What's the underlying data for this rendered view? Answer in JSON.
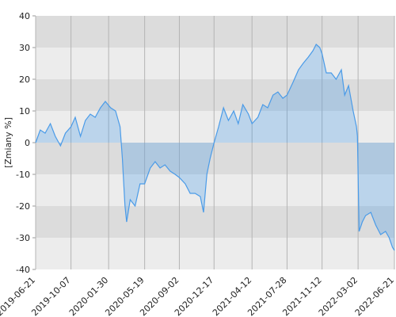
{
  "chart_data": {
    "type": "area",
    "y_label": "[Zmiany %]",
    "xlim": [
      "2019-06-21",
      "2022-06-21"
    ],
    "xticks": [
      "2019-06-21",
      "2019-10-07",
      "2020-01-30",
      "2020-05-19",
      "2020-09-02",
      "2020-12-17",
      "2021-04-12",
      "2021-07-28",
      "2021-11-12",
      "2022-03-02",
      "2022-06-21"
    ],
    "ylim": [
      -40,
      40
    ],
    "yticks": [
      -40,
      -30,
      -20,
      -10,
      0,
      10,
      20,
      30,
      40
    ],
    "grid": true,
    "series": [
      {
        "color": "#4a9be8",
        "x": [
          "2019-06-21",
          "2019-07-05",
          "2019-07-20",
          "2019-08-05",
          "2019-08-20",
          "2019-09-05",
          "2019-09-20",
          "2019-10-07",
          "2019-10-20",
          "2019-11-05",
          "2019-11-20",
          "2019-12-05",
          "2019-12-20",
          "2020-01-05",
          "2020-01-20",
          "2020-02-05",
          "2020-02-20",
          "2020-03-05",
          "2020-03-12",
          "2020-03-20",
          "2020-03-25",
          "2020-04-05",
          "2020-04-20",
          "2020-05-05",
          "2020-05-19",
          "2020-06-05",
          "2020-06-20",
          "2020-07-05",
          "2020-07-20",
          "2020-08-05",
          "2020-08-20",
          "2020-09-02",
          "2020-09-20",
          "2020-10-05",
          "2020-10-20",
          "2020-11-05",
          "2020-11-15",
          "2020-11-25",
          "2020-12-05",
          "2020-12-17",
          "2020-12-31",
          "2021-01-15",
          "2021-01-30",
          "2021-02-15",
          "2021-03-01",
          "2021-03-15",
          "2021-04-01",
          "2021-04-12",
          "2021-04-30",
          "2021-05-15",
          "2021-05-30",
          "2021-06-15",
          "2021-06-30",
          "2021-07-15",
          "2021-07-28",
          "2021-08-15",
          "2021-09-01",
          "2021-09-15",
          "2021-10-01",
          "2021-10-15",
          "2021-10-25",
          "2021-11-05",
          "2021-11-12",
          "2021-11-25",
          "2021-12-10",
          "2021-12-25",
          "2022-01-10",
          "2022-01-20",
          "2022-02-01",
          "2022-02-15",
          "2022-02-25",
          "2022-02-28",
          "2022-03-05",
          "2022-03-15",
          "2022-03-25",
          "2022-04-10",
          "2022-04-25",
          "2022-05-10",
          "2022-05-25",
          "2022-06-05",
          "2022-06-15",
          "2022-06-21"
        ],
        "values": [
          0,
          4,
          3,
          6,
          2,
          -1,
          3,
          5,
          8,
          2,
          7,
          9,
          8,
          11,
          13,
          11,
          10,
          5,
          -5,
          -20,
          -25,
          -18,
          -20,
          -13,
          -13,
          -8,
          -6,
          -8,
          -7,
          -9,
          -10,
          -11,
          -13,
          -16,
          -16,
          -17,
          -22,
          -10,
          -5,
          0,
          5,
          11,
          7,
          10,
          6,
          12,
          9,
          6,
          8,
          12,
          11,
          15,
          16,
          14,
          15,
          19,
          23,
          25,
          27,
          29,
          31,
          30,
          28,
          22,
          22,
          20,
          23,
          15,
          18,
          10,
          5,
          2,
          -28,
          -25,
          -23,
          -22,
          -26,
          -29,
          -28,
          -30,
          -33,
          -34
        ]
      }
    ]
  }
}
